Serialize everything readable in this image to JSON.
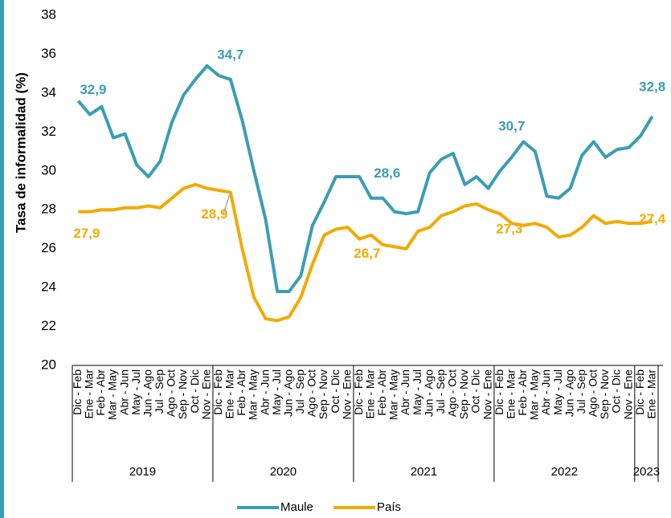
{
  "chart_data": {
    "type": "line",
    "y_label": "Tasa de informalidad (%)",
    "categories": [
      "Dic - Feb",
      "Ene - Mar",
      "Feb - Abr",
      "Mar - May",
      "Abr - Jun",
      "May - Jul",
      "Jun - Ago",
      "Jul - Sep",
      "Ago - Oct",
      "Sep - Nov",
      "Oct - Dic",
      "Nov - Ene",
      "Dic - Feb",
      "Ene - Mar",
      "Feb - Abr",
      "Mar - May",
      "Abr - Jun",
      "May - Jul",
      "Jun - Ago",
      "Jul - Sep",
      "Ago - Oct",
      "Sep - Nov",
      "Oct - Dic",
      "Nov - Ene",
      "Dic - Feb",
      "Ene - Mar",
      "Feb - Abr",
      "Mar - May",
      "Abr - Jun",
      "May - Jul",
      "Jun - Ago",
      "Jul - Sep",
      "Ago - Oct",
      "Sep - Nov",
      "Oct - Dic",
      "Nov - Ene",
      "Dic - Feb",
      "Ene - Mar",
      "Feb - Abr",
      "Mar - May",
      "Abr - Jun",
      "May - Jul",
      "Jun - Ago",
      "Jul - Sep",
      "Ago - Oct",
      "Sep - Nov",
      "Oct - Dic",
      "Nov - Ene",
      "Dic - Feb",
      "Ene - Mar"
    ],
    "category_groups": [
      {
        "label": "2019",
        "size": 12
      },
      {
        "label": "2020",
        "size": 12
      },
      {
        "label": "2021",
        "size": 12
      },
      {
        "label": "2022",
        "size": 12
      },
      {
        "label": "2023",
        "size": 2
      }
    ],
    "series": [
      {
        "name": "Maule",
        "color": "#3a9db5",
        "values": [
          33.6,
          32.9,
          33.3,
          31.7,
          31.9,
          30.3,
          29.7,
          30.5,
          32.5,
          33.9,
          34.7,
          35.4,
          34.9,
          34.7,
          32.6,
          30.0,
          27.5,
          23.8,
          23.8,
          24.6,
          27.2,
          28.4,
          29.7,
          29.7,
          29.7,
          28.6,
          28.6,
          27.9,
          27.8,
          27.9,
          29.9,
          30.6,
          30.9,
          29.3,
          29.7,
          29.1,
          30.0,
          30.7,
          31.5,
          31.0,
          28.7,
          28.6,
          29.1,
          30.8,
          31.5,
          30.7,
          31.1,
          31.2,
          31.8,
          32.8
        ],
        "value_labels": {
          "1": "32,9",
          "13": "34,7",
          "25": "28,6",
          "37": "30,7",
          "49": "32,8"
        }
      },
      {
        "name": "País",
        "color": "#f2aa00",
        "values": [
          27.9,
          27.9,
          28.0,
          28.0,
          28.1,
          28.1,
          28.2,
          28.1,
          28.6,
          29.1,
          29.3,
          29.1,
          29.0,
          28.9,
          26.0,
          23.5,
          22.4,
          22.3,
          22.5,
          23.5,
          25.2,
          26.7,
          27.0,
          27.1,
          26.5,
          26.7,
          26.2,
          26.1,
          26.0,
          26.9,
          27.1,
          27.7,
          27.9,
          28.2,
          28.3,
          28.0,
          27.8,
          27.3,
          27.2,
          27.3,
          27.1,
          26.6,
          26.7,
          27.1,
          27.7,
          27.3,
          27.4,
          27.3,
          27.3,
          27.4
        ],
        "value_labels": {
          "1": "27,9",
          "13": "28,9",
          "25": "26,7",
          "37": "27,3",
          "49": "27,4"
        }
      }
    ],
    "ylim": [
      20,
      38
    ],
    "yticks": [
      20,
      22,
      24,
      26,
      28,
      30,
      32,
      34,
      36,
      38
    ],
    "legend": "bottom"
  }
}
